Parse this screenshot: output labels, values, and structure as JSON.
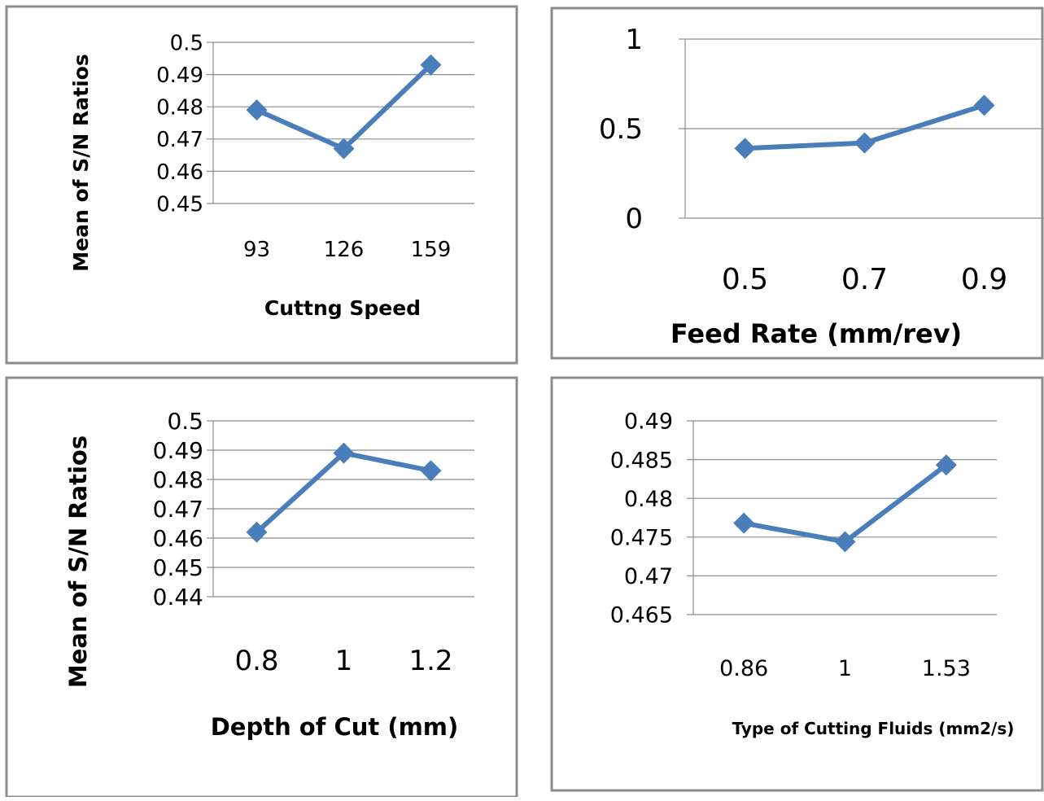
{
  "chart_data": [
    {
      "type": "line",
      "categories": [
        "93",
        "126",
        "159"
      ],
      "values": [
        0.479,
        0.467,
        0.493
      ],
      "xlabel": "Cuttng Speed",
      "ylabel": "Mean of S/N Ratios",
      "yticks": [
        "0.45",
        "0.46",
        "0.47",
        "0.48",
        "0.49",
        "0.5"
      ],
      "ylim": [
        0.45,
        0.5
      ],
      "grid": true,
      "color": "#4a7ebb"
    },
    {
      "type": "line",
      "categories": [
        "0.5",
        "0.7",
        "0.9"
      ],
      "values": [
        0.39,
        0.42,
        0.63
      ],
      "xlabel": "Feed Rate (mm/rev)",
      "ylabel": "",
      "yticks": [
        "0",
        "0.5",
        "1"
      ],
      "ylim": [
        0,
        1
      ],
      "grid": true,
      "color": "#4a7ebb"
    },
    {
      "type": "line",
      "categories": [
        "0.8",
        "1",
        "1.2"
      ],
      "values": [
        0.462,
        0.489,
        0.483
      ],
      "xlabel": "Depth of Cut (mm)",
      "ylabel": "Mean of S/N Ratios",
      "yticks": [
        "0.44",
        "0.45",
        "0.46",
        "0.47",
        "0.48",
        "0.49",
        "0.5"
      ],
      "ylim": [
        0.44,
        0.5
      ],
      "grid": true,
      "color": "#4a7ebb"
    },
    {
      "type": "line",
      "categories": [
        "0.86",
        "1",
        "1.53"
      ],
      "values": [
        0.4768,
        0.4744,
        0.4843
      ],
      "xlabel": "Type of Cutting Fluids (mm2/s)",
      "ylabel": "",
      "yticks": [
        "0.465",
        "0.47",
        "0.475",
        "0.48",
        "0.485",
        "0.49"
      ],
      "ylim": [
        0.465,
        0.49
      ],
      "grid": true,
      "color": "#4a7ebb"
    }
  ]
}
